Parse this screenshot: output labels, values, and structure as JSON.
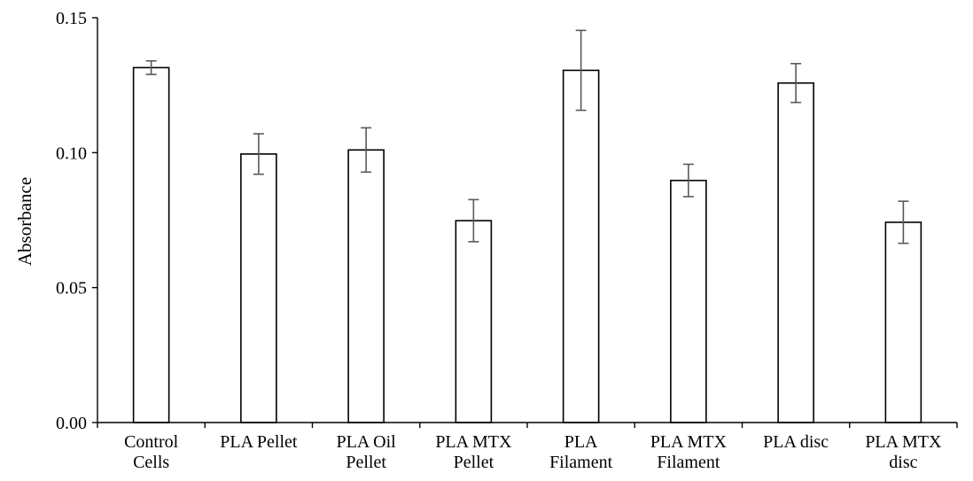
{
  "chart_data": {
    "type": "bar",
    "title": "",
    "xlabel": "",
    "ylabel": "Absorbance",
    "ylim": [
      0,
      0.15
    ],
    "yticks": [
      "0.00",
      "0.05",
      "0.10",
      "0.15"
    ],
    "ytick_values": [
      0,
      0.05,
      0.1,
      0.15
    ],
    "grid": false,
    "legend": "none",
    "categories": [
      [
        "Control",
        "Cells"
      ],
      [
        "PLA Pellet"
      ],
      [
        "PLA Oil",
        "Pellet"
      ],
      [
        "PLA MTX",
        "Pellet"
      ],
      [
        "PLA",
        "Filament"
      ],
      [
        "PLA MTX",
        "Filament"
      ],
      [
        "PLA disc"
      ],
      [
        "PLA MTX",
        "disc"
      ]
    ],
    "series": [
      {
        "values": [
          0.1315,
          0.0995,
          0.101,
          0.0748,
          0.1305,
          0.0897,
          0.1258,
          0.0742
        ],
        "error": [
          0.0025,
          0.0075,
          0.0082,
          0.0078,
          0.0148,
          0.006,
          0.0072,
          0.0078
        ]
      }
    ],
    "colors": {
      "bar_fill": "#ffffff",
      "bar_stroke": "#000000",
      "error_bar": "#595959",
      "axis": "#000000"
    }
  }
}
